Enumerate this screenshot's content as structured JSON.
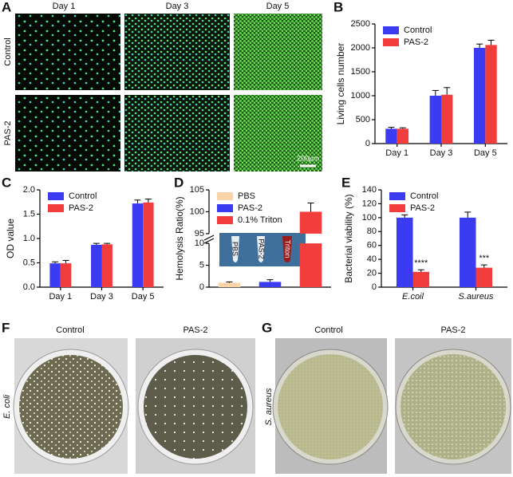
{
  "panel_letters": [
    "A",
    "B",
    "C",
    "D",
    "E",
    "F",
    "G"
  ],
  "cell_images": {
    "days": [
      "Day 1",
      "Day 3",
      "Day 5"
    ],
    "rows": [
      "Control",
      "PAS-2"
    ],
    "scale_bar": "200μm"
  },
  "plates_f": {
    "columns": [
      "Control",
      "PAS-2"
    ],
    "row_label": "E. coli"
  },
  "plates_g": {
    "columns": [
      "Control",
      "PAS-2"
    ],
    "row_label": "S. aureus"
  },
  "chart_data": [
    {
      "type": "bar",
      "ylabel": "Living cells number",
      "categories": [
        "Day 1",
        "Day 3",
        "Day 5"
      ],
      "series": [
        {
          "name": "Control",
          "color": "#3b3bf2",
          "values": [
            310,
            1000,
            2000
          ],
          "errors": [
            30,
            110,
            80
          ]
        },
        {
          "name": "PAS-2",
          "color": "#f23d3d",
          "values": [
            310,
            1020,
            2060
          ],
          "errors": [
            20,
            150,
            100
          ]
        }
      ],
      "ylim": [
        0,
        2500
      ],
      "yticks": [
        0,
        500,
        1000,
        1500,
        2000,
        2500
      ],
      "legend": "upper left"
    },
    {
      "type": "bar",
      "ylabel": "OD value",
      "categories": [
        "Day 1",
        "Day 3",
        "Day 5"
      ],
      "series": [
        {
          "name": "Control",
          "color": "#3b3bf2",
          "values": [
            0.49,
            0.87,
            1.72
          ],
          "errors": [
            0.03,
            0.03,
            0.07
          ]
        },
        {
          "name": "PAS-2",
          "color": "#f23d3d",
          "values": [
            0.49,
            0.88,
            1.74
          ],
          "errors": [
            0.06,
            0.02,
            0.07
          ]
        }
      ],
      "ylim": [
        0,
        2.0
      ],
      "yticks": [
        {
          "value": 0,
          "label": "0.0"
        },
        0.5,
        {
          "value": 1,
          "label": "1.0"
        },
        1.5,
        {
          "value": 2,
          "label": "2.0"
        }
      ],
      "legend": "upper left"
    },
    {
      "type": "broken_bar",
      "ylabel": "Hemolysis Ratio(%)",
      "categories": [
        null
      ],
      "series": [
        {
          "name": "PBS",
          "color": "#f8d4a8",
          "values": [
            1.0
          ],
          "errors": [
            0.2
          ]
        },
        {
          "name": "PAS-2",
          "color": "#3b3bf2",
          "values": [
            1.2
          ],
          "errors": [
            0.5
          ]
        },
        {
          "name": "0.1% Triton",
          "color": "#f23d3d",
          "values": [
            100
          ],
          "errors": [
            2
          ]
        }
      ],
      "ylim_lower": [
        0,
        10
      ],
      "ylim_upper": [
        95,
        105
      ],
      "yticks": [
        0,
        5,
        10,
        95,
        100,
        105
      ],
      "inset_labels": [
        "PBS",
        "PAS-2",
        "Triton"
      ],
      "legend": "upper left"
    },
    {
      "type": "bar",
      "ylabel": "Bacterial viability (%)",
      "categories": [
        "E.coil",
        "S.aureus"
      ],
      "series": [
        {
          "name": "Control",
          "color": "#3b3bf2",
          "values": [
            100,
            100
          ],
          "errors": [
            4,
            8
          ]
        },
        {
          "name": "PAS-2",
          "color": "#f23d3d",
          "values": [
            22,
            28
          ],
          "errors": [
            3,
            4
          ],
          "annotations": [
            "****",
            "***"
          ]
        }
      ],
      "ylim": [
        0,
        140
      ],
      "yticks": [
        0,
        20,
        40,
        60,
        80,
        100,
        120,
        140
      ],
      "legend": "upper left",
      "italic_categories": true
    }
  ]
}
